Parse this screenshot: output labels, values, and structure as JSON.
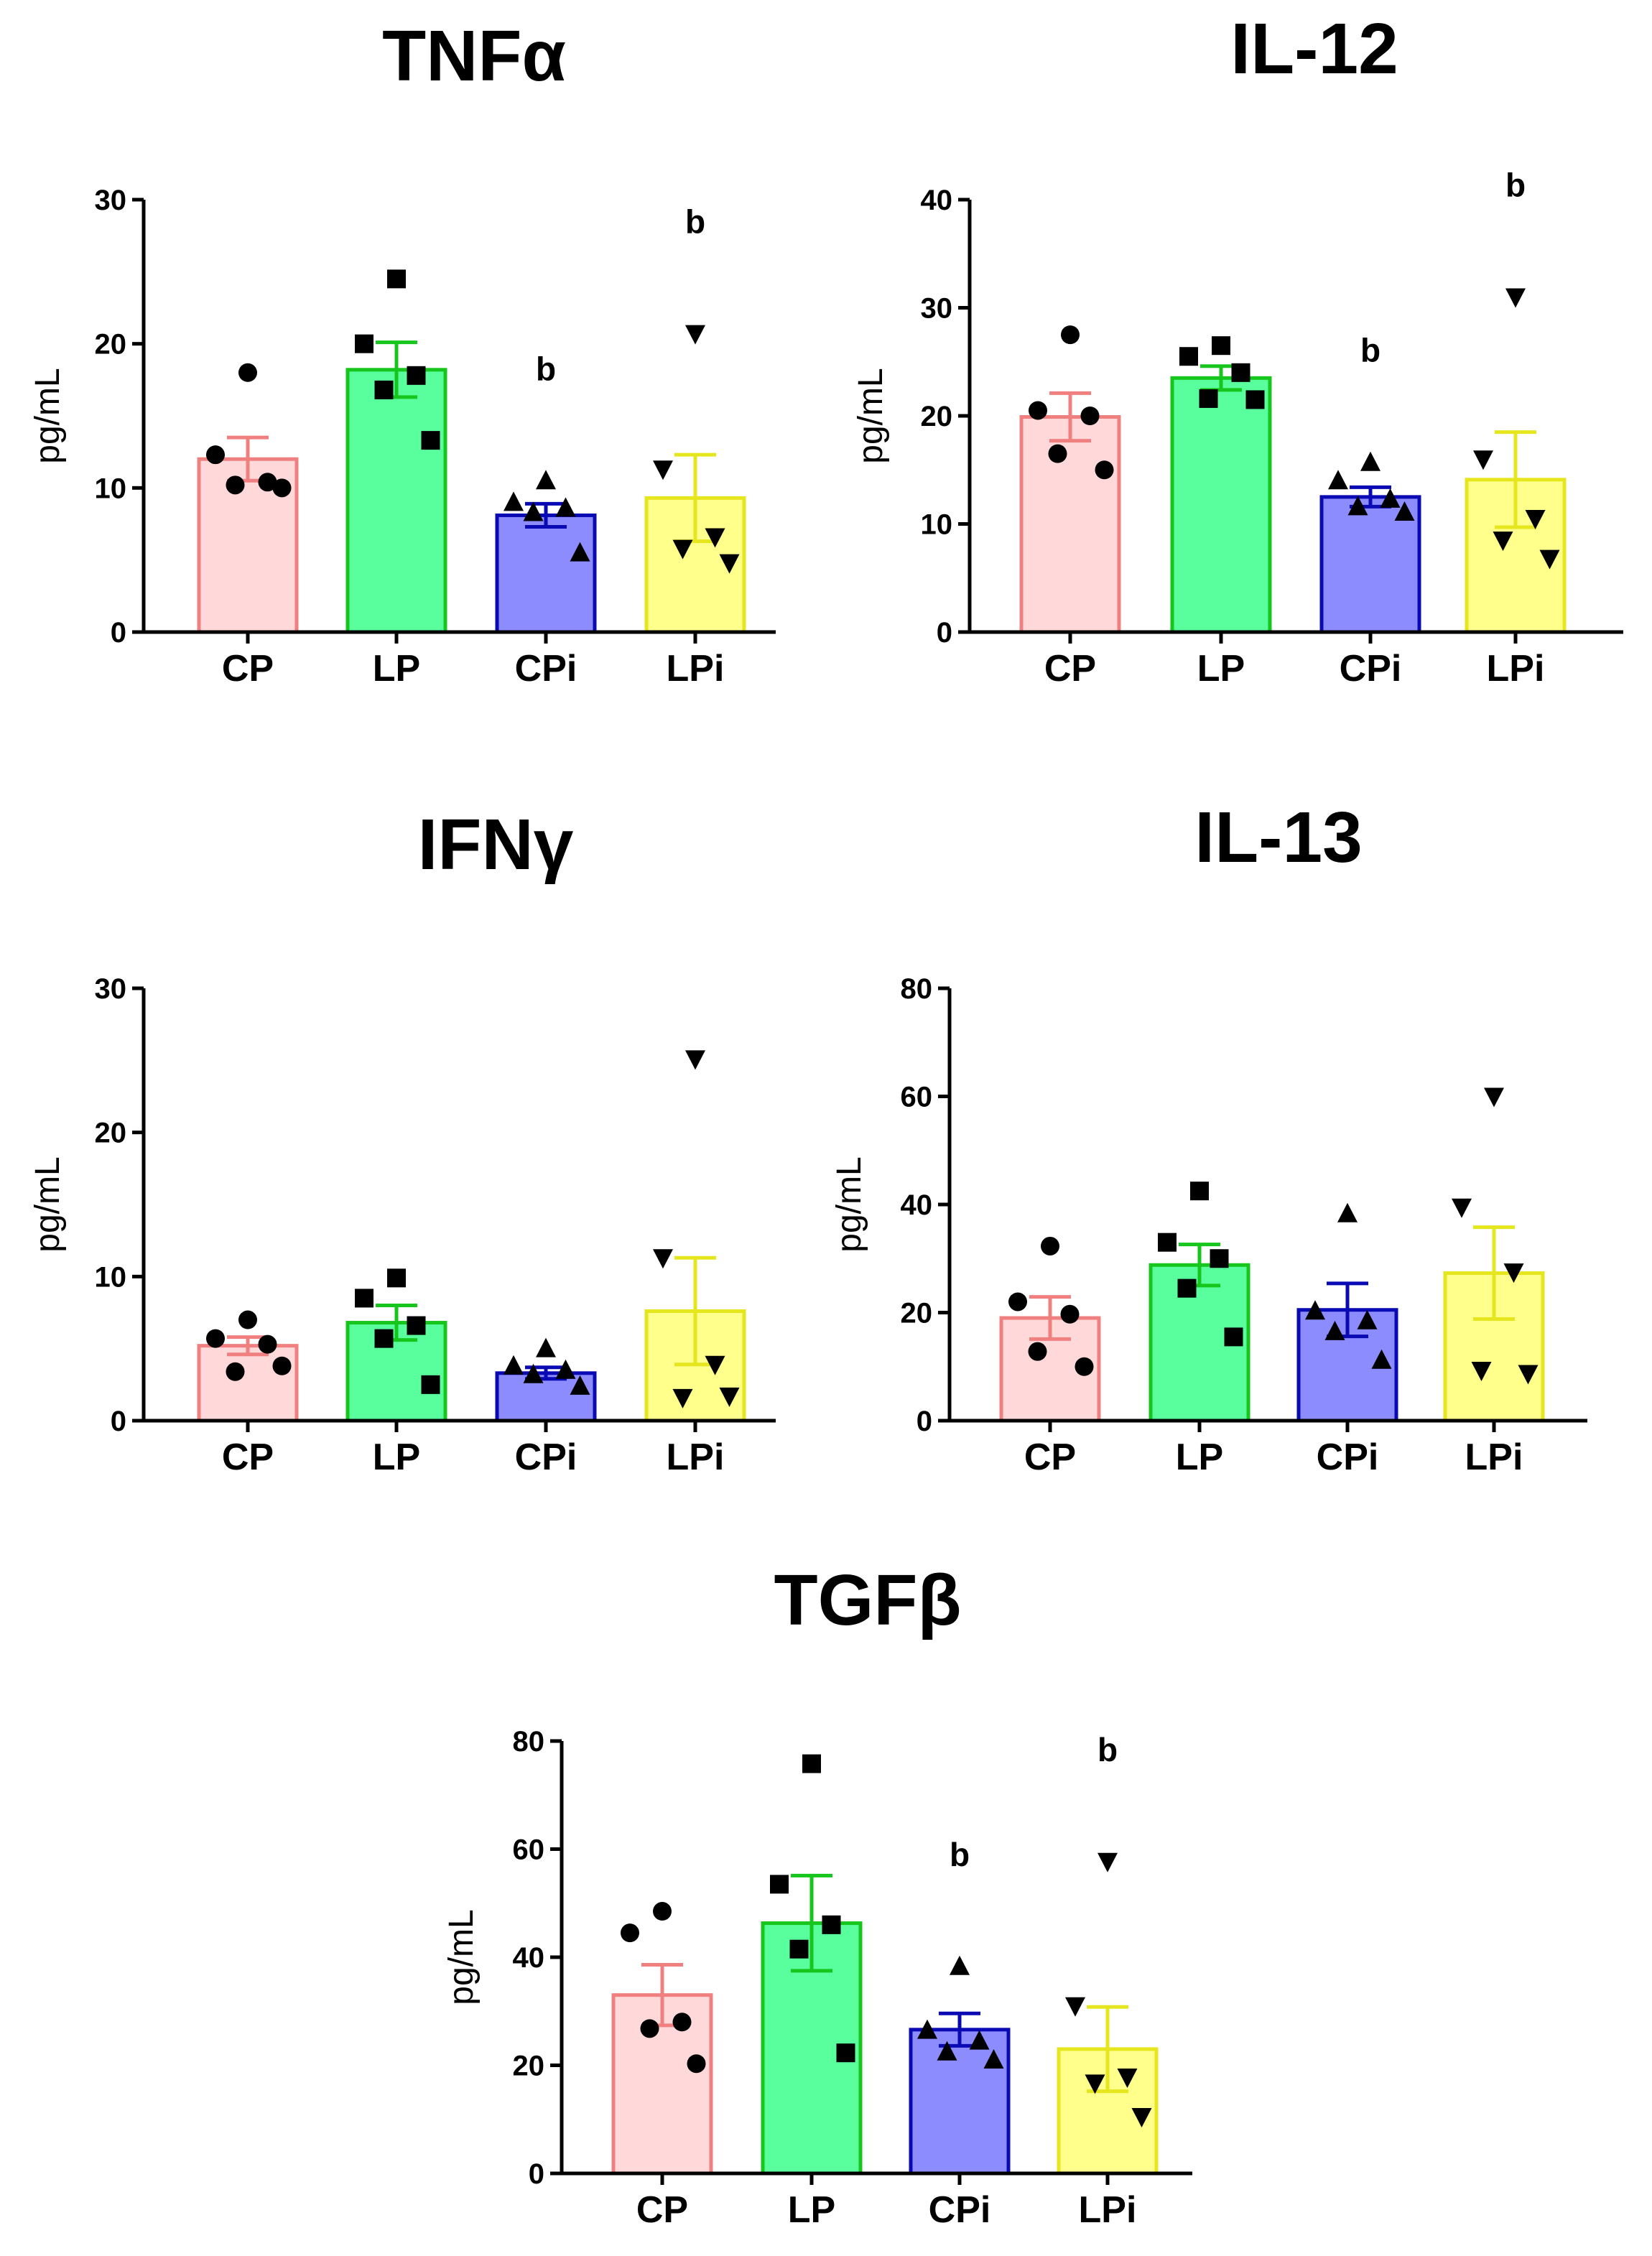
{
  "chart_data": [
    {
      "type": "bar",
      "title": "TNFα",
      "ylabel": "pg/mL",
      "xlabel": "",
      "ylim": [
        0,
        30
      ],
      "yticks": [
        "0",
        "10",
        "20",
        "30"
      ],
      "categories": [
        "CP",
        "LP",
        "CPi",
        "LPi"
      ],
      "means": [
        12,
        18.2,
        8.1,
        9.3
      ],
      "sem": [
        1.5,
        1.9,
        0.8,
        3.0
      ],
      "points": [
        [
          18,
          12.3,
          10.4,
          10.2,
          10
        ],
        [
          24.5,
          20,
          17.8,
          16.8,
          13.3
        ],
        [
          10.5,
          9,
          8.6,
          8.3,
          5.5
        ],
        [
          20.7,
          11.3,
          6.6,
          5.8,
          4.8
        ]
      ],
      "significance": [
        "",
        "",
        "b",
        "b"
      ],
      "colors": {
        "fill": [
          "#ffd9d9",
          "#58ff9c",
          "#8c8cff",
          "#ffff8c"
        ],
        "edge": [
          "#f08080",
          "#17c61c",
          "#0a0ab4",
          "#e6e61e"
        ]
      }
    },
    {
      "type": "bar",
      "title": "IL-12",
      "ylabel": "pg/mL",
      "xlabel": "",
      "ylim": [
        0,
        40
      ],
      "yticks": [
        "0",
        "10",
        "20",
        "30",
        "40"
      ],
      "categories": [
        "CP",
        "LP",
        "CPi",
        "LPi"
      ],
      "means": [
        19.9,
        23.5,
        12.5,
        14.1
      ],
      "sem": [
        2.2,
        1.1,
        0.9,
        4.4
      ],
      "points": [
        [
          27.5,
          20.5,
          20,
          16.5,
          15
        ],
        [
          26.5,
          25.5,
          24,
          21.6,
          21.5
        ],
        [
          15.7,
          14,
          12.3,
          11.6,
          11.1
        ],
        [
          31,
          16,
          10.5,
          8.5,
          6.8
        ]
      ],
      "significance": [
        "",
        "",
        "b",
        "b"
      ],
      "colors": {
        "fill": [
          "#ffd9d9",
          "#58ff9c",
          "#8c8cff",
          "#ffff8c"
        ],
        "edge": [
          "#f08080",
          "#17c61c",
          "#0a0ab4",
          "#e6e61e"
        ]
      }
    },
    {
      "type": "bar",
      "title": "IFNγ",
      "ylabel": "pg/mL",
      "xlabel": "",
      "ylim": [
        0,
        30
      ],
      "yticks": [
        "0",
        "10",
        "20",
        "30"
      ],
      "categories": [
        "CP",
        "LP",
        "CPi",
        "LPi"
      ],
      "means": [
        5.2,
        6.8,
        3.3,
        7.6
      ],
      "sem": [
        0.6,
        1.2,
        0.4,
        3.7
      ],
      "points": [
        [
          7,
          5.7,
          5.3,
          3.4,
          3.8
        ],
        [
          9.9,
          8.5,
          6.6,
          5.7,
          2.5
        ],
        [
          5,
          3.8,
          3.5,
          3.2,
          2.4
        ],
        [
          25.1,
          11.3,
          3.9,
          1.6,
          1.7
        ]
      ],
      "significance": [
        "",
        "",
        "",
        ""
      ],
      "colors": {
        "fill": [
          "#ffd9d9",
          "#58ff9c",
          "#8c8cff",
          "#ffff8c"
        ],
        "edge": [
          "#f08080",
          "#17c61c",
          "#0a0ab4",
          "#e6e61e"
        ]
      }
    },
    {
      "type": "bar",
      "title": "IL-13",
      "ylabel": "pg/mL",
      "xlabel": "",
      "ylim": [
        0,
        80
      ],
      "yticks": [
        "0",
        "20",
        "40",
        "60",
        "80"
      ],
      "categories": [
        "CP",
        "LP",
        "CPi",
        "LPi"
      ],
      "means": [
        19,
        28.8,
        20.5,
        27.3
      ],
      "sem": [
        3.9,
        3.8,
        4.9,
        8.5
      ],
      "points": [
        [
          32.3,
          22,
          19.7,
          12.8,
          10
        ],
        [
          42.5,
          33,
          30,
          24.5,
          15.5
        ],
        [
          38.3,
          20.3,
          18.5,
          16.5,
          11.2
        ],
        [
          60,
          39.5,
          27.5,
          9.3,
          8.7
        ]
      ],
      "significance": [
        "",
        "",
        "",
        ""
      ],
      "colors": {
        "fill": [
          "#ffd9d9",
          "#58ff9c",
          "#8c8cff",
          "#ffff8c"
        ],
        "edge": [
          "#f08080",
          "#17c61c",
          "#0a0ab4",
          "#e6e61e"
        ]
      }
    },
    {
      "type": "bar",
      "title": "TGFβ",
      "ylabel": "pg/mL",
      "xlabel": "",
      "ylim": [
        0,
        80
      ],
      "yticks": [
        "0",
        "20",
        "40",
        "60",
        "80"
      ],
      "categories": [
        "CP",
        "LP",
        "CPi",
        "LPi"
      ],
      "means": [
        33,
        46.3,
        26.6,
        23
      ],
      "sem": [
        5.6,
        8.8,
        3,
        7.8
      ],
      "points": [
        [
          48.5,
          44.5,
          28,
          26.8,
          20.3
        ],
        [
          75.8,
          53.5,
          46,
          41.5,
          22.3
        ],
        [
          38.3,
          26.5,
          24.5,
          22.5,
          21
        ],
        [
          57.7,
          31,
          17.8,
          16.7,
          10.5
        ]
      ],
      "significance": [
        "",
        "",
        "b",
        "b"
      ],
      "colors": {
        "fill": [
          "#ffd9d9",
          "#58ff9c",
          "#8c8cff",
          "#ffff8c"
        ],
        "edge": [
          "#f08080",
          "#17c61c",
          "#0a0ab4",
          "#e6e61e"
        ]
      }
    }
  ]
}
